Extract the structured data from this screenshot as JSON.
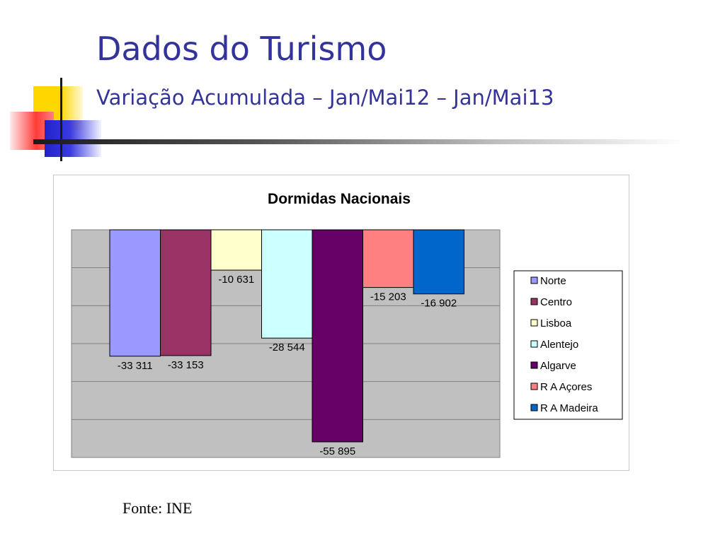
{
  "slide": {
    "title": "Dados do Turismo",
    "subtitle": "Variação Acumulada – Jan/Mai12 – Jan/Mai13",
    "source": "Fonte: INE"
  },
  "colors": {
    "title": "#333399",
    "plot_background": "#c0c0c0"
  },
  "chart_data": {
    "type": "bar",
    "title": "Dormidas Nacionais",
    "xlabel": "",
    "ylabel": "",
    "categories": [
      "Norte",
      "Centro",
      "Lisboa",
      "Alentejo",
      "Algarve",
      "R A Açores",
      "R A Madeira"
    ],
    "values": [
      -33311,
      -33153,
      -10631,
      -28544,
      -55895,
      -15203,
      -16902
    ],
    "value_labels": [
      "-33 311",
      "-33 153",
      "-10 631",
      "-28 544",
      "-55 895",
      "-15 203",
      "-16 902"
    ],
    "colors": [
      "#9999ff",
      "#993366",
      "#ffffcc",
      "#ccffff",
      "#660066",
      "#ff8080",
      "#0066cc"
    ],
    "ylim": [
      -60000,
      0
    ],
    "grid": true,
    "legend": "right",
    "tick_labels_shown": false
  }
}
